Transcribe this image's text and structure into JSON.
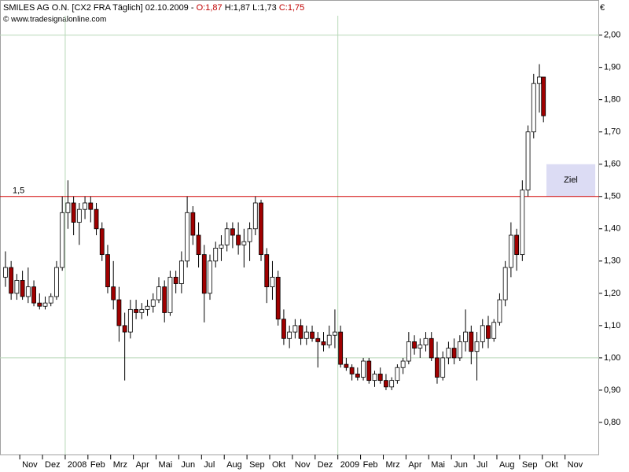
{
  "chart_data": {
    "type": "candlestick",
    "title": "SMILES AG  O.N. [CX2 FRA  Täglich] 02.10.2009 -",
    "last_open": "O:1,87",
    "last_high": "H:1,87",
    "last_low": "L:1,73",
    "last_close": "C:1,75",
    "source": "© www.tradesignalonline.com",
    "currency": "€",
    "up_color": "#ffffff",
    "down_color": "#a00000",
    "x": [
      0.37,
      0.62,
      0.87,
      1.12,
      1.37,
      1.62,
      1.87,
      2.12,
      2.37,
      2.62,
      2.87,
      3.12,
      3.37,
      3.62,
      3.87,
      4.12,
      4.37,
      4.62,
      4.87,
      5.12,
      5.37,
      5.62,
      5.87,
      6.12,
      6.37,
      6.62,
      6.87,
      7.12,
      7.37,
      7.62,
      7.87,
      8.12,
      8.37,
      8.62,
      8.87,
      9.12,
      9.37,
      9.62,
      9.87,
      10.12,
      10.37,
      10.62,
      10.87,
      11.12,
      11.37,
      11.62,
      11.87,
      12.12,
      12.37,
      12.62,
      12.87,
      13.12,
      13.37,
      13.62,
      13.87,
      14.12,
      14.37,
      14.62,
      14.87,
      15.12,
      15.37,
      15.62,
      15.87,
      16.12,
      16.37,
      16.62,
      16.87,
      17.12,
      17.37,
      17.62,
      17.87,
      18.12,
      18.37,
      18.62,
      18.87,
      19.12,
      19.37,
      19.62,
      19.87,
      20.12,
      20.37,
      20.62,
      20.87,
      21.12,
      21.37,
      21.62,
      21.87,
      22.12,
      22.37,
      22.62,
      22.87,
      23.12,
      23.37,
      23.62,
      23.87,
      24.05
    ],
    "open": [
      1.25,
      1.28,
      1.2,
      1.24,
      1.19,
      1.22,
      1.17,
      1.16,
      1.17,
      1.19,
      1.28,
      1.45,
      1.48,
      1.42,
      1.46,
      1.48,
      1.46,
      1.4,
      1.32,
      1.22,
      1.18,
      1.1,
      1.08,
      1.15,
      1.14,
      1.15,
      1.16,
      1.18,
      1.22,
      1.14,
      1.25,
      1.23,
      1.3,
      1.45,
      1.38,
      1.32,
      1.2,
      1.3,
      1.34,
      1.35,
      1.4,
      1.38,
      1.35,
      1.36,
      1.4,
      1.48,
      1.32,
      1.22,
      1.25,
      1.12,
      1.06,
      1.08,
      1.1,
      1.06,
      1.08,
      1.06,
      1.05,
      1.04,
      1.07,
      1.08,
      0.98,
      0.97,
      0.95,
      0.94,
      0.99,
      0.93,
      0.95,
      0.93,
      0.91,
      0.93,
      0.97,
      0.99,
      1.05,
      1.03,
      1.04,
      1.06,
      1.0,
      0.94,
      1.0,
      1.03,
      1.0,
      1.05,
      1.08,
      1.02,
      1.05,
      1.1,
      1.06,
      1.11,
      1.18,
      1.28,
      1.38,
      1.32,
      1.52,
      1.7,
      1.85,
      1.87
    ],
    "high": [
      1.33,
      1.3,
      1.26,
      1.27,
      1.28,
      1.24,
      1.2,
      1.19,
      1.2,
      1.3,
      1.5,
      1.55,
      1.5,
      1.48,
      1.5,
      1.5,
      1.48,
      1.42,
      1.35,
      1.3,
      1.22,
      1.14,
      1.18,
      1.18,
      1.17,
      1.18,
      1.2,
      1.25,
      1.24,
      1.27,
      1.27,
      1.33,
      1.5,
      1.47,
      1.42,
      1.35,
      1.32,
      1.36,
      1.38,
      1.42,
      1.42,
      1.42,
      1.4,
      1.42,
      1.5,
      1.49,
      1.34,
      1.3,
      1.27,
      1.15,
      1.1,
      1.12,
      1.12,
      1.1,
      1.1,
      1.08,
      1.08,
      1.1,
      1.15,
      1.1,
      1.0,
      0.98,
      0.97,
      1.0,
      1.0,
      0.96,
      0.97,
      0.95,
      0.94,
      0.98,
      1.0,
      1.08,
      1.07,
      1.06,
      1.08,
      1.08,
      1.05,
      1.02,
      1.05,
      1.06,
      1.07,
      1.15,
      1.1,
      1.08,
      1.12,
      1.13,
      1.12,
      1.2,
      1.3,
      1.42,
      1.4,
      1.55,
      1.72,
      1.88,
      1.91,
      1.87
    ],
    "low": [
      1.22,
      1.18,
      1.18,
      1.18,
      1.17,
      1.16,
      1.15,
      1.15,
      1.16,
      1.18,
      1.27,
      1.4,
      1.38,
      1.35,
      1.43,
      1.42,
      1.38,
      1.3,
      1.2,
      1.15,
      1.05,
      0.93,
      1.06,
      1.12,
      1.12,
      1.13,
      1.14,
      1.17,
      1.11,
      1.13,
      1.2,
      1.2,
      1.28,
      1.35,
      1.28,
      1.11,
      1.18,
      1.28,
      1.3,
      1.33,
      1.34,
      1.32,
      1.28,
      1.3,
      1.38,
      1.3,
      1.17,
      1.18,
      1.1,
      1.04,
      1.03,
      1.06,
      1.04,
      1.04,
      1.05,
      0.97,
      1.02,
      1.03,
      1.03,
      0.97,
      0.96,
      0.93,
      0.93,
      0.93,
      0.92,
      0.91,
      0.92,
      0.9,
      0.9,
      0.92,
      0.95,
      0.98,
      1.01,
      1.0,
      1.02,
      0.99,
      0.92,
      0.93,
      0.98,
      0.98,
      0.99,
      1.02,
      0.98,
      0.93,
      1.03,
      1.03,
      1.05,
      1.1,
      1.16,
      1.25,
      1.27,
      1.3,
      1.5,
      1.68,
      1.76,
      1.73
    ],
    "close": [
      1.28,
      1.2,
      1.24,
      1.19,
      1.22,
      1.17,
      1.16,
      1.17,
      1.19,
      1.28,
      1.45,
      1.48,
      1.42,
      1.46,
      1.48,
      1.46,
      1.4,
      1.32,
      1.22,
      1.18,
      1.1,
      1.08,
      1.15,
      1.14,
      1.15,
      1.16,
      1.18,
      1.22,
      1.14,
      1.25,
      1.23,
      1.3,
      1.45,
      1.38,
      1.32,
      1.2,
      1.3,
      1.34,
      1.35,
      1.4,
      1.38,
      1.35,
      1.36,
      1.4,
      1.48,
      1.32,
      1.22,
      1.25,
      1.12,
      1.06,
      1.08,
      1.1,
      1.06,
      1.08,
      1.06,
      1.05,
      1.04,
      1.07,
      1.08,
      0.98,
      0.97,
      0.95,
      0.94,
      0.99,
      0.93,
      0.95,
      0.93,
      0.91,
      0.93,
      0.97,
      0.99,
      1.05,
      1.03,
      1.04,
      1.06,
      1.0,
      0.94,
      1.0,
      1.03,
      1.0,
      1.05,
      1.08,
      1.02,
      1.05,
      1.1,
      1.06,
      1.11,
      1.18,
      1.28,
      1.38,
      1.32,
      1.52,
      1.7,
      1.85,
      1.87,
      1.75
    ],
    "xlim": [
      0.13,
      26.5
    ],
    "xticks": [
      {
        "value": 1,
        "label": "Nov"
      },
      {
        "value": 2,
        "label": "Dez"
      },
      {
        "value": 3,
        "label": "2008"
      },
      {
        "value": 4,
        "label": "Feb"
      },
      {
        "value": 5,
        "label": "Mrz"
      },
      {
        "value": 6,
        "label": "Apr"
      },
      {
        "value": 7,
        "label": "Mai"
      },
      {
        "value": 8,
        "label": "Jun"
      },
      {
        "value": 9,
        "label": "Jul"
      },
      {
        "value": 10,
        "label": "Aug"
      },
      {
        "value": 11,
        "label": "Sep"
      },
      {
        "value": 12,
        "label": "Okt"
      },
      {
        "value": 13,
        "label": "Nov"
      },
      {
        "value": 14,
        "label": "Dez"
      },
      {
        "value": 15,
        "label": "2009"
      },
      {
        "value": 16,
        "label": "Feb"
      },
      {
        "value": 17,
        "label": "Mrz"
      },
      {
        "value": 18,
        "label": "Apr"
      },
      {
        "value": 19,
        "label": "Mai"
      },
      {
        "value": 20,
        "label": "Jun"
      },
      {
        "value": 21,
        "label": "Jul"
      },
      {
        "value": 22,
        "label": "Aug"
      },
      {
        "value": 23,
        "label": "Sep"
      },
      {
        "value": 24,
        "label": "Okt"
      },
      {
        "value": 25,
        "label": "Nov"
      }
    ],
    "ylim": [
      0.7,
      2.06
    ],
    "yticks": [
      {
        "value": 0.8,
        "label": "0,80"
      },
      {
        "value": 0.9,
        "label": "0,90"
      },
      {
        "value": 1.0,
        "label": "1,00"
      },
      {
        "value": 1.1,
        "label": "1,10"
      },
      {
        "value": 1.2,
        "label": "1,20"
      },
      {
        "value": 1.3,
        "label": "1,30"
      },
      {
        "value": 1.4,
        "label": "1,40"
      },
      {
        "value": 1.5,
        "label": "1,50"
      },
      {
        "value": 1.6,
        "label": "1,60"
      },
      {
        "value": 1.7,
        "label": "1,70"
      },
      {
        "value": 1.8,
        "label": "1,80"
      },
      {
        "value": 1.9,
        "label": "1,90"
      },
      {
        "value": 2.0,
        "label": "2,00"
      }
    ],
    "xgrid": [
      3,
      15
    ],
    "ygrid": [
      1,
      2
    ],
    "hline": {
      "value": 1.5,
      "label": "1,5",
      "color": "#d00000"
    },
    "target_zone": {
      "label": "Ziel",
      "xlim": [
        24.18,
        26.33
      ],
      "ylim": [
        1.5,
        1.6
      ],
      "color": "#dcdcf4"
    }
  }
}
